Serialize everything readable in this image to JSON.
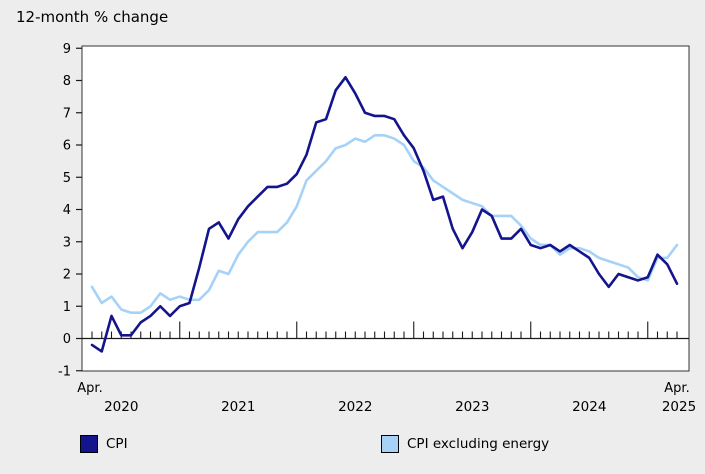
{
  "chart": {
    "title": "12-month % change"
  },
  "chart_data": {
    "type": "line",
    "title": "12-month % change",
    "xlabel": "",
    "ylabel": "12-month % change",
    "frequency": "monthly",
    "x_range_start": "Apr. 2020",
    "x_range_end": "Apr. 2025",
    "first_point_label": "Apr.",
    "last_point_label": "Apr.",
    "year_tick_labels": [
      "2020",
      "2021",
      "2022",
      "2023",
      "2024",
      "2025"
    ],
    "ylim": [
      -1,
      9
    ],
    "y_ticks": [
      -1,
      0,
      1,
      2,
      3,
      4,
      5,
      6,
      7,
      8,
      9
    ],
    "grid": false,
    "legend_position": "bottom",
    "plot_background": "#ffffff",
    "page_background": "#ededed",
    "series": [
      {
        "name": "CPI",
        "color": "#14148c",
        "values": [
          -0.2,
          -0.4,
          0.7,
          0.1,
          0.1,
          0.5,
          0.7,
          1.0,
          0.7,
          1.0,
          1.1,
          2.2,
          3.4,
          3.6,
          3.1,
          3.7,
          4.1,
          4.4,
          4.7,
          4.7,
          4.8,
          5.1,
          5.7,
          6.7,
          6.8,
          7.7,
          8.1,
          7.6,
          7.0,
          6.9,
          6.9,
          6.8,
          6.3,
          5.9,
          5.2,
          4.3,
          4.4,
          3.4,
          2.8,
          3.3,
          4.0,
          3.8,
          3.1,
          3.1,
          3.4,
          2.9,
          2.8,
          2.9,
          2.7,
          2.9,
          2.7,
          2.5,
          2.0,
          1.6,
          2.0,
          1.9,
          1.8,
          1.9,
          2.6,
          2.3,
          1.7
        ]
      },
      {
        "name": "CPI excluding energy",
        "color": "#a6d2f8",
        "values": [
          1.6,
          1.1,
          1.3,
          0.9,
          0.8,
          0.8,
          1.0,
          1.4,
          1.2,
          1.3,
          1.2,
          1.2,
          1.5,
          2.1,
          2.0,
          2.6,
          3.0,
          3.3,
          3.3,
          3.3,
          3.6,
          4.1,
          4.9,
          5.2,
          5.5,
          5.9,
          6.0,
          6.2,
          6.1,
          6.3,
          6.3,
          6.2,
          6.0,
          5.5,
          5.3,
          4.9,
          4.7,
          4.5,
          4.3,
          4.2,
          4.1,
          3.8,
          3.8,
          3.8,
          3.5,
          3.1,
          2.9,
          2.9,
          2.6,
          2.8,
          2.8,
          2.7,
          2.5,
          2.4,
          2.3,
          2.2,
          1.9,
          1.8,
          2.5,
          2.5,
          2.9
        ]
      }
    ]
  }
}
